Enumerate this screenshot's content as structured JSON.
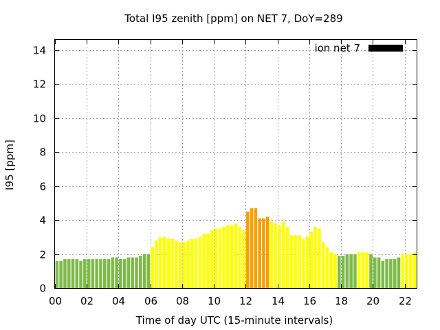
{
  "chart_data": {
    "type": "bar",
    "title": "Total I95 zenith [ppm] on NET 7, DoY=289",
    "xlabel": "Time of day UTC (15-minute intervals)",
    "ylabel": "I95 [ppm]",
    "xlim": [
      0,
      22.75
    ],
    "ylim": [
      0,
      14.6
    ],
    "x_ticks": [
      "00",
      "02",
      "04",
      "06",
      "08",
      "10",
      "12",
      "14",
      "16",
      "18",
      "20",
      "22"
    ],
    "y_ticks": [
      "0",
      "2",
      "4",
      "6",
      "8",
      "10",
      "12",
      "14"
    ],
    "grid": true,
    "legend": {
      "label": "ion net 7",
      "color": "#000000",
      "placement": "top-right"
    },
    "colors": {
      "green": "#7dba4a",
      "yellow": "#ffff00",
      "orange": "#f5a000"
    },
    "interval_hours": 0.25,
    "values": [
      1.6,
      1.6,
      1.7,
      1.7,
      1.7,
      1.7,
      1.6,
      1.7,
      1.7,
      1.7,
      1.7,
      1.7,
      1.7,
      1.7,
      1.8,
      1.8,
      1.7,
      1.7,
      1.8,
      1.8,
      1.8,
      1.9,
      2.0,
      2.0,
      2.4,
      2.8,
      3.0,
      3.0,
      2.9,
      2.9,
      2.8,
      2.7,
      2.7,
      2.8,
      2.9,
      2.9,
      3.0,
      3.2,
      3.2,
      3.4,
      3.5,
      3.5,
      3.6,
      3.7,
      3.7,
      3.8,
      3.6,
      3.4,
      4.5,
      4.7,
      4.7,
      4.1,
      4.1,
      4.2,
      3.9,
      3.8,
      3.7,
      3.9,
      3.6,
      3.1,
      3.1,
      3.1,
      2.9,
      3.0,
      3.3,
      3.6,
      3.5,
      2.7,
      2.4,
      2.1,
      2.0,
      1.9,
      1.9,
      2.0,
      2.0,
      2.0,
      2.1,
      2.1,
      2.1,
      2.0,
      1.8,
      1.8,
      1.6,
      1.7,
      1.7,
      1.7,
      1.8,
      2.0,
      2.0,
      2.0,
      2.1
    ],
    "bar_colors": [
      "green",
      "green",
      "green",
      "green",
      "green",
      "green",
      "green",
      "green",
      "green",
      "green",
      "green",
      "green",
      "green",
      "green",
      "green",
      "green",
      "green",
      "green",
      "green",
      "green",
      "green",
      "green",
      "green",
      "green",
      "yellow",
      "yellow",
      "yellow",
      "yellow",
      "yellow",
      "yellow",
      "yellow",
      "yellow",
      "yellow",
      "yellow",
      "yellow",
      "yellow",
      "yellow",
      "yellow",
      "yellow",
      "yellow",
      "yellow",
      "yellow",
      "yellow",
      "yellow",
      "yellow",
      "yellow",
      "yellow",
      "yellow",
      "orange",
      "orange",
      "orange",
      "orange",
      "orange",
      "orange",
      "yellow",
      "yellow",
      "yellow",
      "yellow",
      "yellow",
      "yellow",
      "yellow",
      "yellow",
      "yellow",
      "yellow",
      "yellow",
      "yellow",
      "yellow",
      "yellow",
      "yellow",
      "yellow",
      "yellow",
      "green",
      "green",
      "green",
      "green",
      "green",
      "yellow",
      "yellow",
      "yellow",
      "green",
      "green",
      "green",
      "green",
      "green",
      "green",
      "green",
      "green",
      "yellow",
      "yellow",
      "yellow",
      "yellow"
    ]
  }
}
